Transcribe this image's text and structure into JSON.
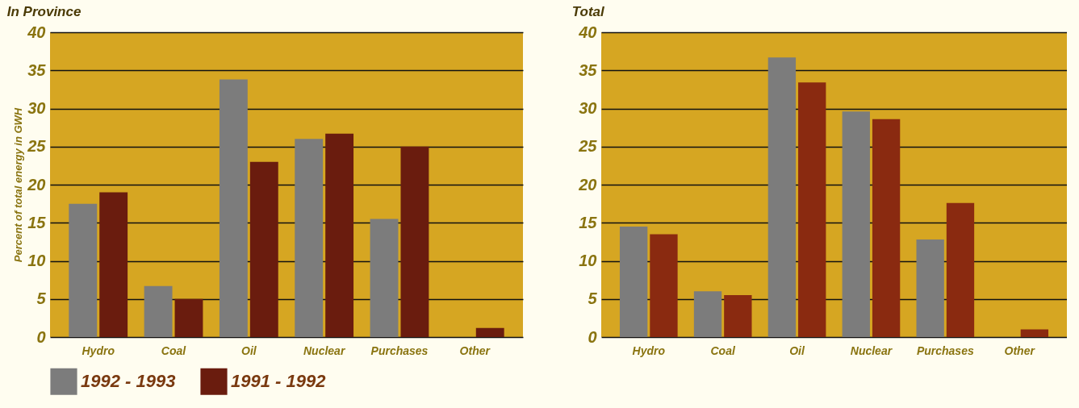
{
  "chart_data": [
    {
      "type": "bar",
      "title": "In Province",
      "ylabel": "Percent of total energy in GWH",
      "categories": [
        "Hydro",
        "Coal",
        "Oil",
        "Nuclear",
        "Purchases",
        "Other"
      ],
      "series": [
        {
          "name": "1992 - 1993",
          "color": "#7c7c7c",
          "values": [
            17.5,
            6.7,
            33.8,
            26,
            15.5,
            null
          ]
        },
        {
          "name": "1991 - 1992",
          "color": "#6a1c0e",
          "values": [
            19,
            5,
            23,
            26.7,
            25,
            1.2
          ]
        }
      ],
      "ylim": [
        0,
        40
      ],
      "yticks": [
        0,
        5,
        10,
        15,
        20,
        25,
        30,
        35,
        40
      ],
      "grid": "y",
      "legend": "bottom"
    },
    {
      "type": "bar",
      "title": "Total",
      "categories": [
        "Hydro",
        "Coal",
        "Oil",
        "Nuclear",
        "Purchases",
        "Other"
      ],
      "series": [
        {
          "color": "#7c7c7c",
          "values": [
            14.5,
            6,
            36.7,
            29.6,
            12.8,
            null
          ]
        },
        {
          "color": "#8a2a10",
          "values": [
            13.5,
            5.5,
            33.4,
            28.6,
            17.6,
            1
          ]
        }
      ],
      "ylim": [
        0,
        40
      ],
      "yticks": [
        0,
        5,
        10,
        15,
        20,
        25,
        30,
        35,
        40
      ],
      "grid": "y"
    }
  ]
}
